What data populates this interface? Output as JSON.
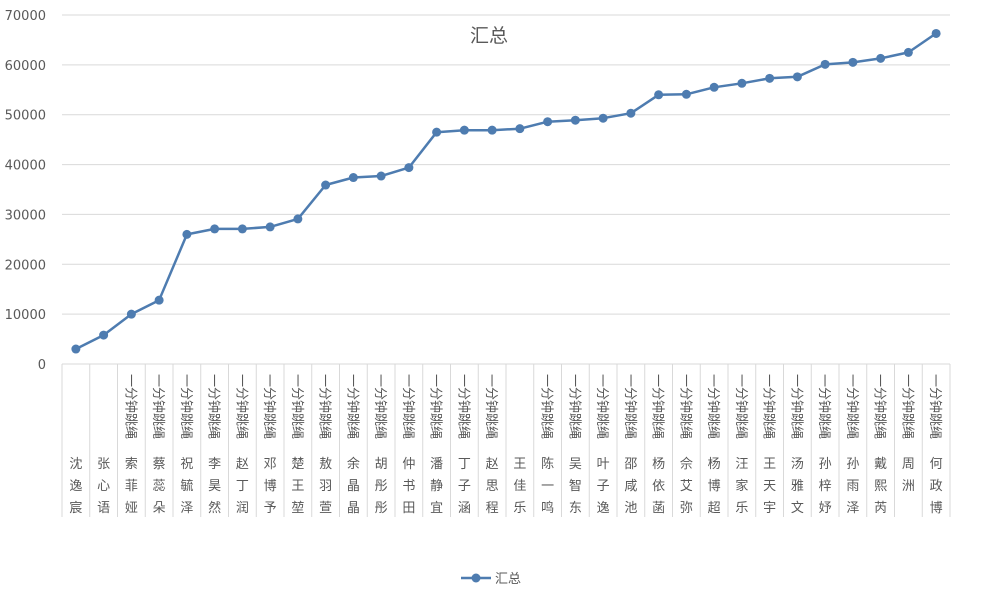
{
  "chart_data": {
    "type": "line",
    "title": "汇总",
    "xlabel": "",
    "ylabel": "",
    "ylim": [
      0,
      70000
    ],
    "yticks": [
      0,
      10000,
      20000,
      30000,
      40000,
      50000,
      60000,
      70000
    ],
    "grid": true,
    "legend_position": "bottom",
    "line_color": "#4e7cb0",
    "categories": [
      {
        "prefix": "",
        "name": "沈逸宸"
      },
      {
        "prefix": "",
        "name": "张心语"
      },
      {
        "prefix": "一分钟跳绳",
        "name": "索菲娅"
      },
      {
        "prefix": "一分钟跳绳",
        "name": "蔡蕊朵"
      },
      {
        "prefix": "一分钟跳绳",
        "name": "祝毓泽"
      },
      {
        "prefix": "一分钟跳绳",
        "name": "李昊然"
      },
      {
        "prefix": "一分钟跳绳",
        "name": "赵丁润"
      },
      {
        "prefix": "一分钟跳绳",
        "name": "邓博予"
      },
      {
        "prefix": "一分钟跳绳",
        "name": "楚王堃"
      },
      {
        "prefix": "一分钟跳绳",
        "name": "敖羽萱"
      },
      {
        "prefix": "一分钟跳绳",
        "name": "余晶晶"
      },
      {
        "prefix": "一分钟跳绳",
        "name": "胡彤彤"
      },
      {
        "prefix": "一分钟跳绳",
        "name": "仲书田"
      },
      {
        "prefix": "一分钟跳绳",
        "name": "潘静宜"
      },
      {
        "prefix": "一分钟跳绳",
        "name": "丁子涵"
      },
      {
        "prefix": "一分钟跳绳",
        "name": "赵思程"
      },
      {
        "prefix": "",
        "name": "王佳乐"
      },
      {
        "prefix": "一分钟跳绳",
        "name": "陈一鸣"
      },
      {
        "prefix": "一分钟跳绳",
        "name": "吴智东"
      },
      {
        "prefix": "一分钟跳绳",
        "name": "叶子逸"
      },
      {
        "prefix": "一分钟跳绳",
        "name": "邵咸池"
      },
      {
        "prefix": "一分钟跳绳",
        "name": "杨依菡"
      },
      {
        "prefix": "一分钟跳绳",
        "name": "佘艾弥"
      },
      {
        "prefix": "一分钟跳绳",
        "name": "杨博超"
      },
      {
        "prefix": "一分钟跳绳",
        "name": "汪家乐"
      },
      {
        "prefix": "一分钟跳绳",
        "name": "王天宇"
      },
      {
        "prefix": "一分钟跳绳",
        "name": "汤雅文"
      },
      {
        "prefix": "一分钟跳绳",
        "name": "孙梓妤"
      },
      {
        "prefix": "一分钟跳绳",
        "name": "孙雨泽"
      },
      {
        "prefix": "一分钟跳绳",
        "name": "戴熙芮"
      },
      {
        "prefix": "一分钟跳绳",
        "name": "周洲"
      },
      {
        "prefix": "一分钟跳绳",
        "name": "何政博"
      }
    ],
    "series": [
      {
        "name": "汇总",
        "values": [
          3000,
          5800,
          10000,
          12800,
          26000,
          27100,
          27100,
          27500,
          29100,
          35900,
          37400,
          37700,
          39400,
          46500,
          46900,
          46900,
          47200,
          48600,
          48900,
          49300,
          50300,
          54000,
          54100,
          55500,
          56300,
          57300,
          57600,
          60100,
          60500,
          61300,
          62500,
          66300
        ]
      }
    ]
  }
}
